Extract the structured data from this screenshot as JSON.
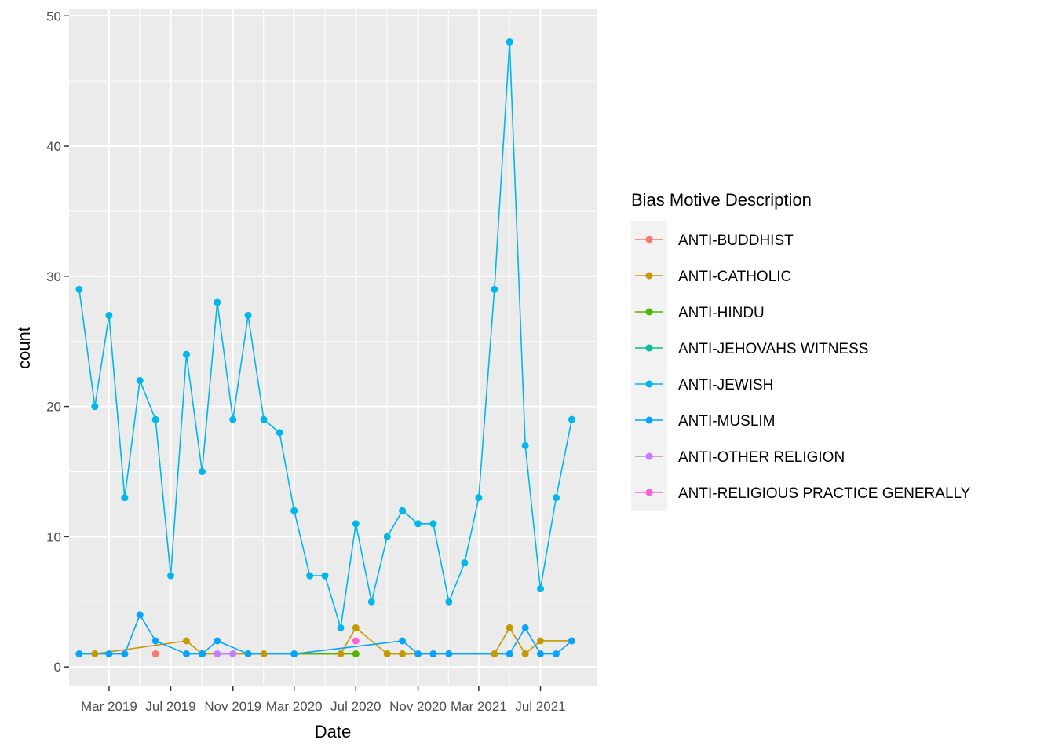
{
  "chart_data": {
    "type": "line",
    "xlabel": "Date",
    "ylabel": "count",
    "ylim": [
      -1.5,
      50.5
    ],
    "xlim": [
      "2018-12-12",
      "2021-10-20"
    ],
    "grid": true,
    "y_ticks": [
      0,
      10,
      20,
      30,
      40,
      50
    ],
    "x_ticks": [
      {
        "date": "2019-03-01",
        "label": "Mar 2019"
      },
      {
        "date": "2019-07-01",
        "label": "Jul 2019"
      },
      {
        "date": "2019-11-01",
        "label": "Nov 2019"
      },
      {
        "date": "2020-03-01",
        "label": "Mar 2020"
      },
      {
        "date": "2020-07-01",
        "label": "Jul 2020"
      },
      {
        "date": "2020-11-01",
        "label": "Nov 2020"
      },
      {
        "date": "2021-03-01",
        "label": "Mar 2021"
      },
      {
        "date": "2021-07-01",
        "label": "Jul 2021"
      }
    ],
    "legend": {
      "title": "Bias Motive Description",
      "placement": "right"
    },
    "series": [
      {
        "name": "ANTI-BUDDHIST",
        "color": "#F8766D",
        "points": [
          [
            "2019-06-01",
            1
          ]
        ]
      },
      {
        "name": "ANTI-CATHOLIC",
        "color": "#C49A00",
        "points": [
          [
            "2019-02-01",
            1
          ],
          [
            "2019-08-01",
            2
          ],
          [
            "2019-09-01",
            1
          ],
          [
            "2019-12-01",
            1
          ],
          [
            "2020-01-01",
            1
          ],
          [
            "2020-06-01",
            1
          ],
          [
            "2020-07-01",
            3
          ],
          [
            "2020-09-01",
            1
          ],
          [
            "2020-10-01",
            1
          ],
          [
            "2021-04-01",
            1
          ],
          [
            "2021-05-01",
            3
          ],
          [
            "2021-06-01",
            1
          ],
          [
            "2021-07-01",
            2
          ],
          [
            "2021-09-01",
            2
          ]
        ]
      },
      {
        "name": "ANTI-HINDU",
        "color": "#53B400",
        "points": [
          [
            "2020-03-01",
            1
          ],
          [
            "2020-07-01",
            1
          ]
        ]
      },
      {
        "name": "ANTI-JEHOVAHS WITNESS",
        "color": "#00C094",
        "points": [
          [
            "2019-09-01",
            1
          ]
        ]
      },
      {
        "name": "ANTI-JEWISH",
        "color": "#00B6EB",
        "points": [
          [
            "2019-01-01",
            29
          ],
          [
            "2019-02-01",
            20
          ],
          [
            "2019-03-01",
            27
          ],
          [
            "2019-04-01",
            13
          ],
          [
            "2019-05-01",
            22
          ],
          [
            "2019-06-01",
            19
          ],
          [
            "2019-07-01",
            7
          ],
          [
            "2019-08-01",
            24
          ],
          [
            "2019-09-01",
            15
          ],
          [
            "2019-10-01",
            28
          ],
          [
            "2019-11-01",
            19
          ],
          [
            "2019-12-01",
            27
          ],
          [
            "2020-01-01",
            19
          ],
          [
            "2020-02-01",
            18
          ],
          [
            "2020-03-01",
            12
          ],
          [
            "2020-04-01",
            7
          ],
          [
            "2020-05-01",
            7
          ],
          [
            "2020-06-01",
            3
          ],
          [
            "2020-07-01",
            11
          ],
          [
            "2020-08-01",
            5
          ],
          [
            "2020-09-01",
            10
          ],
          [
            "2020-10-01",
            12
          ],
          [
            "2020-11-01",
            11
          ],
          [
            "2020-12-01",
            11
          ],
          [
            "2021-01-01",
            5
          ],
          [
            "2021-02-01",
            8
          ],
          [
            "2021-03-01",
            13
          ],
          [
            "2021-04-01",
            29
          ],
          [
            "2021-05-01",
            48
          ],
          [
            "2021-06-01",
            17
          ],
          [
            "2021-07-01",
            6
          ],
          [
            "2021-08-01",
            13
          ],
          [
            "2021-09-01",
            19
          ]
        ]
      },
      {
        "name": "ANTI-MUSLIM",
        "color": "#06A4FF",
        "points": [
          [
            "2019-01-01",
            1
          ],
          [
            "2019-03-01",
            1
          ],
          [
            "2019-04-01",
            1
          ],
          [
            "2019-05-01",
            4
          ],
          [
            "2019-06-01",
            2
          ],
          [
            "2019-08-01",
            1
          ],
          [
            "2019-09-01",
            1
          ],
          [
            "2019-10-01",
            2
          ],
          [
            "2019-12-01",
            1
          ],
          [
            "2020-03-01",
            1
          ],
          [
            "2020-10-01",
            2
          ],
          [
            "2020-11-01",
            1
          ],
          [
            "2020-12-01",
            1
          ],
          [
            "2021-01-01",
            1
          ],
          [
            "2021-05-01",
            1
          ],
          [
            "2021-06-01",
            3
          ],
          [
            "2021-07-01",
            1
          ],
          [
            "2021-08-01",
            1
          ],
          [
            "2021-09-01",
            2
          ]
        ]
      },
      {
        "name": "ANTI-OTHER RELIGION",
        "color": "#C77CFF",
        "points": [
          [
            "2019-10-01",
            1
          ],
          [
            "2019-11-01",
            1
          ]
        ]
      },
      {
        "name": "ANTI-RELIGIOUS PRACTICE GENERALLY",
        "color": "#FB61D7",
        "points": [
          [
            "2020-07-01",
            2
          ]
        ]
      }
    ]
  }
}
